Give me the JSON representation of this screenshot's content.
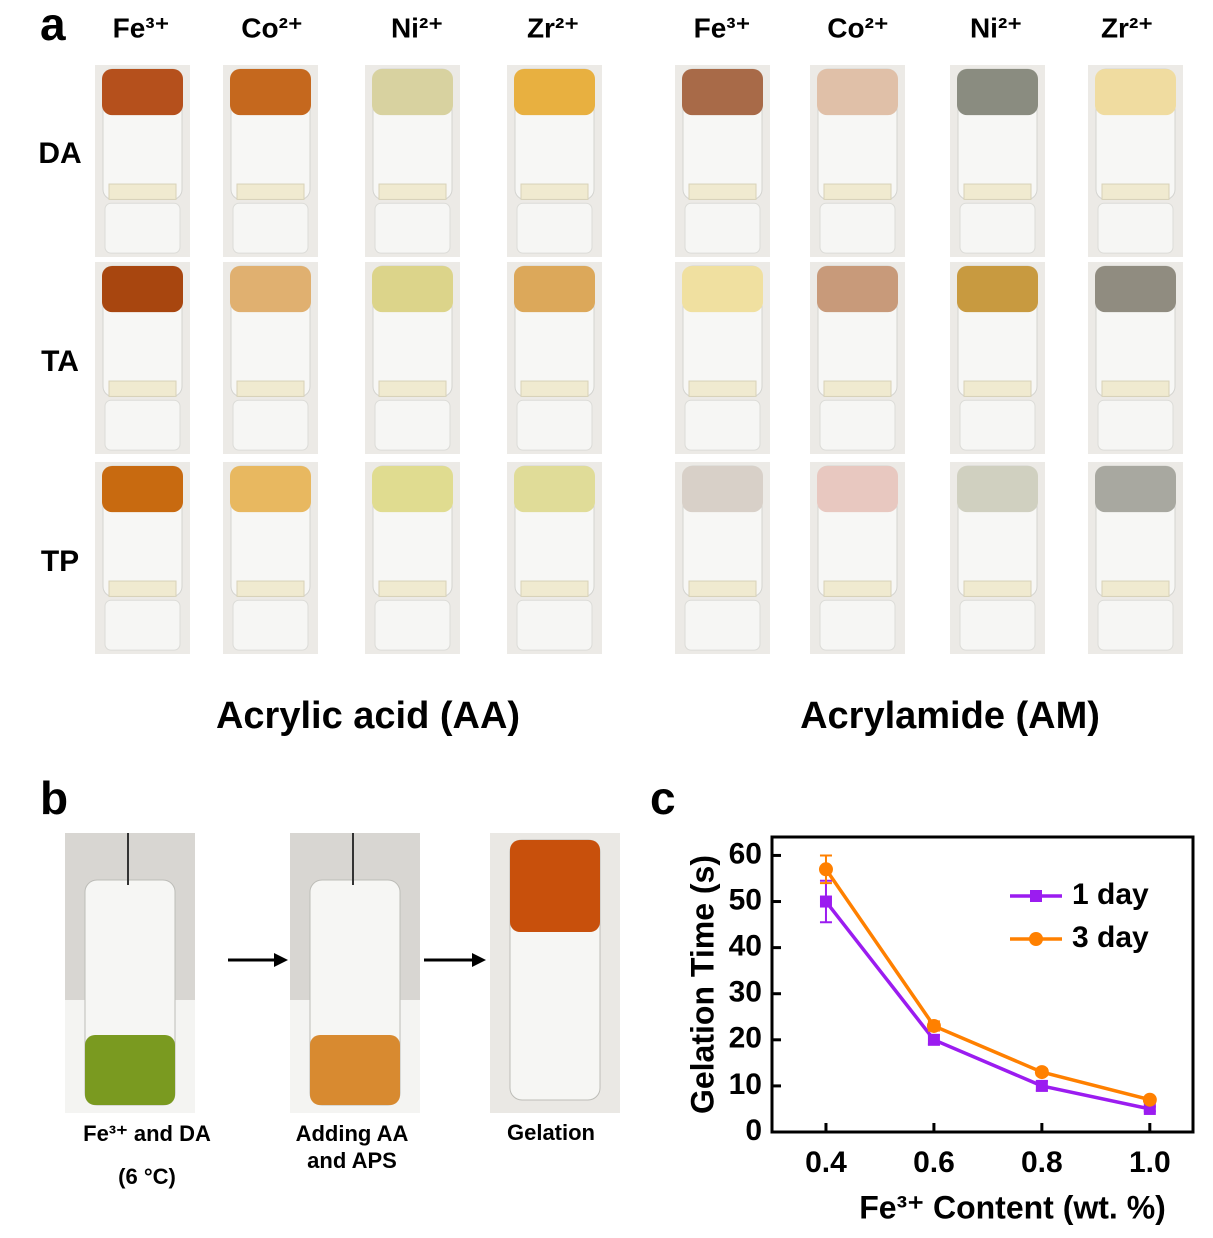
{
  "panel_a": {
    "label": "a",
    "columns": [
      "Fe³⁺",
      "Co²⁺",
      "Ni²⁺",
      "Zr²⁺",
      "Fe³⁺",
      "Co²⁺",
      "Ni²⁺",
      "Zr²⁺"
    ],
    "rows": [
      "DA",
      "TA",
      "TP"
    ],
    "groups": [
      "Acrylic acid (AA)",
      "Acrylamide (AM)"
    ]
  },
  "panel_b": {
    "label": "b",
    "captions": [
      [
        "Fe³⁺ and DA",
        "(6 °C)"
      ],
      [
        "Adding AA",
        "and APS"
      ],
      [
        "Gelation"
      ]
    ]
  },
  "panel_c_label": "c",
  "chart_data": {
    "type": "line",
    "x": [
      0.4,
      0.6,
      0.8,
      1.0
    ],
    "xlim": [
      0.3,
      1.08
    ],
    "xticks": [
      0.4,
      0.6,
      0.8,
      {
        "value": 1.0,
        "label": "1.0"
      }
    ],
    "ylim": [
      0,
      64
    ],
    "yticks": [
      0,
      10,
      20,
      30,
      40,
      50,
      60
    ],
    "xlabel": "Fe³⁺ Content (wt. %)",
    "ylabel": "Gelation Time (s)",
    "legend": "upper right",
    "series": [
      {
        "name": "1 day",
        "color": "#9b1cf0",
        "marker": "square",
        "values": [
          50,
          20,
          10,
          5
        ],
        "errors": [
          4.5,
          1,
          1,
          0.5
        ]
      },
      {
        "name": "3 day",
        "color": "#ff8000",
        "marker": "circle",
        "values": [
          57,
          23,
          13,
          7
        ],
        "errors": [
          3,
          1,
          0.7,
          0.5
        ]
      }
    ]
  }
}
